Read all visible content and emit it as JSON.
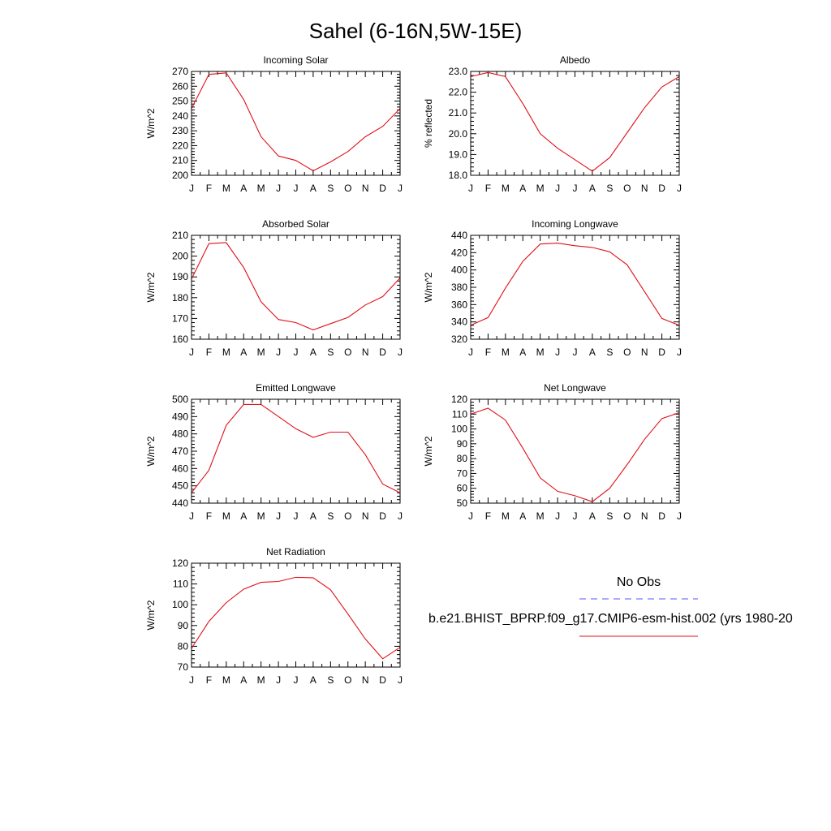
{
  "figure": {
    "title": "Sahel (6-16N,5W-15E)",
    "line_color": "#e0101a",
    "obs_color": "#5a5aff",
    "legend": {
      "obs_label": "No Obs",
      "model_label": "b.e21.BHIST_BPRP.f09_g17.CMIP6-esm-hist.002 (yrs 1980-20"
    }
  },
  "chart_data": [
    {
      "type": "line",
      "title": "Incoming Solar",
      "ylabel": "W/m^2",
      "categories": [
        "J",
        "F",
        "M",
        "A",
        "M",
        "J",
        "J",
        "A",
        "S",
        "O",
        "N",
        "D",
        "J"
      ],
      "values": [
        245,
        268,
        269,
        251,
        226,
        213,
        210,
        203,
        209,
        216,
        226,
        233,
        245
      ],
      "ylim": [
        200,
        270
      ],
      "yticks": [
        "200",
        "210",
        "220",
        "230",
        "240",
        "250",
        "260",
        "270"
      ]
    },
    {
      "type": "line",
      "title": "Albedo",
      "ylabel": "% reflected",
      "categories": [
        "J",
        "F",
        "M",
        "A",
        "M",
        "J",
        "J",
        "A",
        "S",
        "O",
        "N",
        "D",
        "J"
      ],
      "values": [
        22.75,
        22.95,
        22.75,
        21.45,
        20.0,
        19.3,
        18.75,
        18.2,
        18.85,
        20.05,
        21.25,
        22.25,
        22.75
      ],
      "ylim": [
        18,
        23
      ],
      "yticks": [
        "18.0",
        "19.0",
        "20.0",
        "21.0",
        "22.0",
        "23.0"
      ]
    },
    {
      "type": "line",
      "title": "Absorbed Solar",
      "ylabel": "W/m^2",
      "categories": [
        "J",
        "F",
        "M",
        "A",
        "M",
        "J",
        "J",
        "A",
        "S",
        "O",
        "N",
        "D",
        "J"
      ],
      "values": [
        189,
        206,
        206.5,
        194.5,
        178,
        169.5,
        168,
        164.5,
        167.5,
        170.5,
        176.5,
        180.5,
        189.5
      ],
      "ylim": [
        160,
        210
      ],
      "yticks": [
        "160",
        "170",
        "180",
        "190",
        "200",
        "210"
      ]
    },
    {
      "type": "line",
      "title": "Incoming Longwave",
      "ylabel": "W/m^2",
      "categories": [
        "J",
        "F",
        "M",
        "A",
        "M",
        "J",
        "J",
        "A",
        "S",
        "O",
        "N",
        "D",
        "J"
      ],
      "values": [
        336,
        345,
        379,
        410,
        430,
        431,
        428,
        426,
        421,
        406,
        375,
        344,
        336
      ],
      "ylim": [
        320,
        440
      ],
      "yticks": [
        "320",
        "340",
        "360",
        "380",
        "400",
        "420",
        "440"
      ]
    },
    {
      "type": "line",
      "title": "Emitted Longwave",
      "ylabel": "W/m^2",
      "categories": [
        "J",
        "F",
        "M",
        "A",
        "M",
        "J",
        "J",
        "A",
        "S",
        "O",
        "N",
        "D",
        "J"
      ],
      "values": [
        446,
        459,
        485,
        497,
        497,
        490,
        483,
        478,
        481,
        481,
        468,
        451,
        446
      ],
      "ylim": [
        440,
        500
      ],
      "yticks": [
        "440",
        "450",
        "460",
        "470",
        "480",
        "490",
        "500"
      ]
    },
    {
      "type": "line",
      "title": "Net Longwave",
      "ylabel": "W/m^2",
      "categories": [
        "J",
        "F",
        "M",
        "A",
        "M",
        "J",
        "J",
        "A",
        "S",
        "O",
        "N",
        "D",
        "J"
      ],
      "values": [
        110,
        114,
        106,
        87,
        67,
        58,
        55,
        51,
        60,
        76,
        93,
        107,
        111
      ],
      "ylim": [
        50,
        120
      ],
      "yticks": [
        "50",
        "60",
        "70",
        "80",
        "90",
        "100",
        "110",
        "120"
      ]
    },
    {
      "type": "line",
      "title": "Net Radiation",
      "ylabel": "W/m^2",
      "categories": [
        "J",
        "F",
        "M",
        "A",
        "M",
        "J",
        "J",
        "A",
        "S",
        "O",
        "N",
        "D",
        "J"
      ],
      "values": [
        79,
        92,
        101,
        107.5,
        110.8,
        111.2,
        113.2,
        113,
        107.2,
        95.5,
        83.5,
        74,
        79.5
      ],
      "ylim": [
        70,
        120
      ],
      "yticks": [
        "70",
        "80",
        "90",
        "100",
        "110",
        "120"
      ]
    }
  ]
}
